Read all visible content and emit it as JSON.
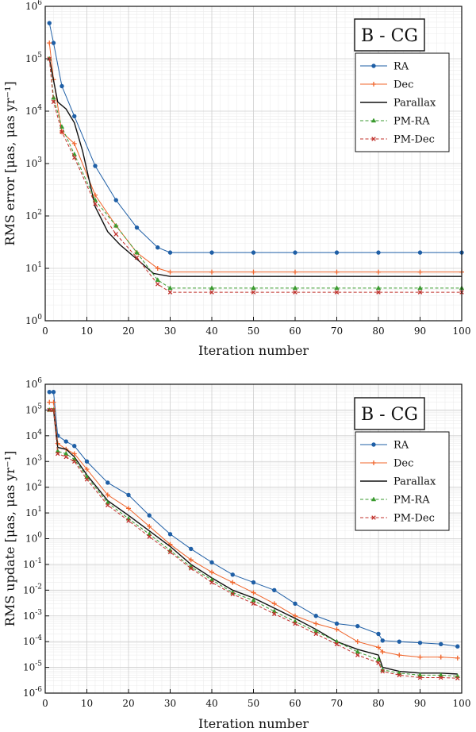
{
  "chart_data": [
    {
      "type": "line",
      "badge": "B - CG",
      "xlabel": "Iteration number",
      "ylabel": "RMS error [μas, μas yr⁻¹]",
      "y_scale": "log",
      "xlim": [
        0,
        100
      ],
      "ylim_exp": [
        0,
        6
      ],
      "x_ticks": [
        "0",
        "10",
        "20",
        "30",
        "40",
        "50",
        "60",
        "70",
        "80",
        "90",
        "100"
      ],
      "y_ticks": [
        {
          "base": "10",
          "exp": "0"
        },
        {
          "base": "10",
          "exp": "1"
        },
        {
          "base": "10",
          "exp": "2"
        },
        {
          "base": "10",
          "exp": "3"
        },
        {
          "base": "10",
          "exp": "4"
        },
        {
          "base": "10",
          "exp": "5"
        },
        {
          "base": "10",
          "exp": "6"
        }
      ],
      "grid": true,
      "legend_position": "top-right",
      "series": [
        {
          "name": "RA",
          "color": "#1f5fa6",
          "dash": "solid",
          "marker": "circle",
          "x": [
            1,
            2,
            4,
            7,
            12,
            17,
            22,
            27,
            30,
            40,
            50,
            60,
            70,
            80,
            90,
            100
          ],
          "y": [
            480000,
            200000,
            30000,
            8000,
            900,
            200,
            60,
            25,
            20,
            20,
            20,
            20,
            20,
            20,
            20,
            20
          ]
        },
        {
          "name": "Dec",
          "color": "#f0642a",
          "dash": "solid",
          "marker": "plus",
          "x": [
            1,
            2,
            4,
            7,
            12,
            17,
            22,
            27,
            30,
            40,
            50,
            60,
            70,
            80,
            90,
            100
          ],
          "y": [
            200000,
            40000,
            4000,
            2400,
            250,
            65,
            20,
            10,
            8.5,
            8.5,
            8.5,
            8.5,
            8.5,
            8.5,
            8.5,
            8.5
          ]
        },
        {
          "name": "Parallax",
          "color": "#111111",
          "dash": "solid",
          "marker": "none",
          "x": [
            1,
            3,
            5,
            7,
            9,
            12,
            15,
            18,
            22,
            26,
            30,
            40,
            50,
            60,
            70,
            80,
            90,
            100
          ],
          "y": [
            100000,
            15000,
            11000,
            6000,
            1700,
            150,
            50,
            28,
            15,
            8,
            7,
            7,
            7,
            7,
            7,
            7,
            7,
            7
          ]
        },
        {
          "name": "PM-RA",
          "color": "#3a9a2f",
          "dash": "dashed",
          "marker": "triangle",
          "x": [
            1,
            2,
            4,
            7,
            12,
            17,
            22,
            27,
            30,
            40,
            50,
            60,
            70,
            80,
            90,
            100
          ],
          "y": [
            100000,
            18000,
            5000,
            1500,
            200,
            65,
            20,
            6,
            4.2,
            4.2,
            4.2,
            4.2,
            4.2,
            4.2,
            4.2,
            4.2
          ]
        },
        {
          "name": "PM-Dec",
          "color": "#c0302b",
          "dash": "dashed",
          "marker": "x",
          "x": [
            1,
            2,
            4,
            7,
            12,
            17,
            22,
            27,
            30,
            40,
            50,
            60,
            70,
            80,
            90,
            100
          ],
          "y": [
            100000,
            15000,
            4000,
            1300,
            170,
            45,
            16,
            5,
            3.5,
            3.5,
            3.5,
            3.5,
            3.5,
            3.5,
            3.5,
            3.5
          ]
        }
      ]
    },
    {
      "type": "line",
      "badge": "B - CG",
      "xlabel": "Iteration number",
      "ylabel": "RMS update [μas, μas yr⁻¹]",
      "y_scale": "log",
      "xlim": [
        0,
        100
      ],
      "ylim_exp": [
        -6,
        6
      ],
      "x_ticks": [
        "0",
        "10",
        "20",
        "30",
        "40",
        "50",
        "60",
        "70",
        "80",
        "90",
        "100"
      ],
      "y_ticks": [
        {
          "base": "10",
          "exp": "-6"
        },
        {
          "base": "10",
          "exp": "-5"
        },
        {
          "base": "10",
          "exp": "-4"
        },
        {
          "base": "10",
          "exp": "-3"
        },
        {
          "base": "10",
          "exp": "-2"
        },
        {
          "base": "10",
          "exp": "-1"
        },
        {
          "base": "10",
          "exp": "0"
        },
        {
          "base": "10",
          "exp": "1"
        },
        {
          "base": "10",
          "exp": "2"
        },
        {
          "base": "10",
          "exp": "3"
        },
        {
          "base": "10",
          "exp": "4"
        },
        {
          "base": "10",
          "exp": "5"
        },
        {
          "base": "10",
          "exp": "6"
        }
      ],
      "grid": true,
      "legend_position": "top-right",
      "series": [
        {
          "name": "RA",
          "color": "#1f5fa6",
          "dash": "solid",
          "marker": "circle",
          "x": [
            1,
            2,
            3,
            5,
            7,
            10,
            15,
            20,
            25,
            30,
            35,
            40,
            45,
            50,
            55,
            60,
            65,
            70,
            75,
            80,
            81,
            85,
            90,
            95,
            99
          ],
          "y": [
            500000,
            500000,
            10000,
            6000,
            4000,
            1000,
            150,
            50,
            8,
            1.5,
            0.4,
            0.12,
            0.04,
            0.02,
            0.01,
            0.003,
            0.001,
            0.0005,
            0.0004,
            0.0002,
            0.00011,
            0.0001,
            9e-05,
            8e-05,
            6.5e-05
          ]
        },
        {
          "name": "Dec",
          "color": "#f0642a",
          "dash": "solid",
          "marker": "plus",
          "x": [
            1,
            2,
            3,
            5,
            7,
            10,
            15,
            20,
            25,
            30,
            35,
            40,
            45,
            50,
            55,
            60,
            65,
            70,
            75,
            80,
            81,
            85,
            90,
            95,
            99
          ],
          "y": [
            200000,
            200000,
            5000,
            3000,
            2000,
            500,
            50,
            15,
            3,
            0.6,
            0.15,
            0.05,
            0.02,
            0.008,
            0.003,
            0.001,
            0.0005,
            0.0003,
            0.0001,
            6e-05,
            4e-05,
            3e-05,
            2.5e-05,
            2.5e-05,
            2.3e-05
          ]
        },
        {
          "name": "Parallax",
          "color": "#111111",
          "dash": "solid",
          "marker": "none",
          "x": [
            1,
            2,
            3,
            5,
            7,
            10,
            15,
            20,
            25,
            30,
            35,
            40,
            45,
            50,
            55,
            60,
            65,
            70,
            75,
            80,
            81,
            85,
            90,
            95,
            99
          ],
          "y": [
            100000,
            100000,
            3500,
            3000,
            1500,
            300,
            30,
            8,
            2,
            0.5,
            0.1,
            0.03,
            0.01,
            0.005,
            0.002,
            0.0008,
            0.0003,
            0.0001,
            5e-05,
            3e-05,
            1e-05,
            7e-06,
            6e-06,
            6e-06,
            5.5e-06
          ]
        },
        {
          "name": "PM-RA",
          "color": "#3a9a2f",
          "dash": "dashed",
          "marker": "triangle",
          "x": [
            1,
            2,
            3,
            5,
            7,
            10,
            15,
            20,
            25,
            30,
            35,
            40,
            45,
            50,
            55,
            60,
            65,
            70,
            75,
            80,
            81,
            85,
            90,
            95,
            99
          ],
          "y": [
            100000,
            100000,
            2500,
            2000,
            1200,
            250,
            25,
            6,
            1.5,
            0.35,
            0.08,
            0.025,
            0.008,
            0.004,
            0.0015,
            0.0006,
            0.00025,
            0.0001,
            4e-05,
            2e-05,
            8e-06,
            6e-06,
            5e-06,
            5e-06,
            4.5e-06
          ]
        },
        {
          "name": "PM-Dec",
          "color": "#c0302b",
          "dash": "dashed",
          "marker": "x",
          "x": [
            1,
            2,
            3,
            5,
            7,
            10,
            15,
            20,
            25,
            30,
            35,
            40,
            45,
            50,
            55,
            60,
            65,
            70,
            75,
            80,
            81,
            85,
            90,
            95,
            99
          ],
          "y": [
            100000,
            100000,
            2000,
            1500,
            1000,
            200,
            20,
            5,
            1.2,
            0.3,
            0.07,
            0.02,
            0.007,
            0.003,
            0.0012,
            0.0005,
            0.0002,
            8e-05,
            3e-05,
            1.5e-05,
            7e-06,
            5e-06,
            4e-06,
            4e-06,
            3.8e-06
          ]
        }
      ]
    }
  ]
}
